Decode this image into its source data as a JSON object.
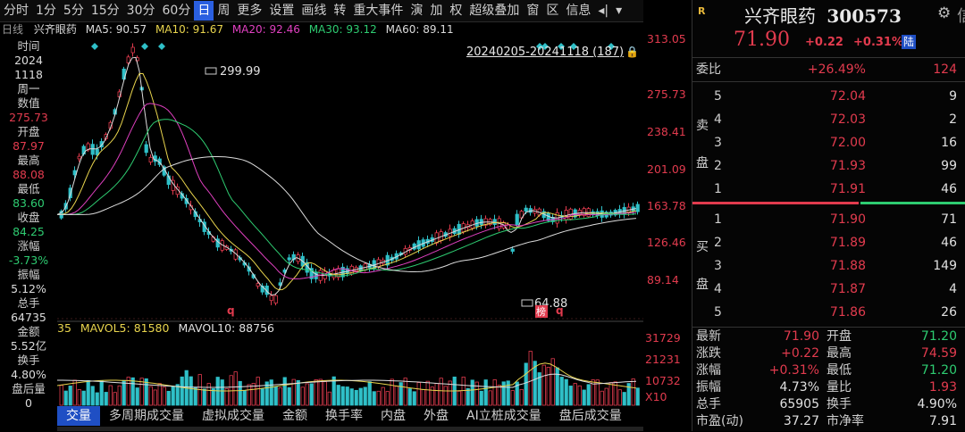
{
  "toolbar": {
    "items": [
      "分时",
      "1分",
      "5分",
      "15分",
      "30分",
      "60分",
      "日",
      "周",
      "更多",
      "设置",
      "画线",
      "转",
      "重大事件",
      "演",
      "加",
      "权",
      "超级叠加",
      "窗",
      "区",
      "信息",
      "◂|",
      "▾"
    ],
    "active_index": 6
  },
  "infobar": {
    "period": "日线",
    "stock": "兴齐眼药",
    "ma5": "MA5: 90.57",
    "ma10": "MA10: 91.67",
    "ma20": "MA20: 92.46",
    "ma30": "MA30: 93.12",
    "ma60": "MA60: 89.11",
    "ma5_color": "#dcdcdc",
    "ma10_color": "#e8d44d",
    "ma20_color": "#e040c0",
    "ma30_color": "#2ecc71",
    "ma60_color": "#dcdcdc"
  },
  "range_label": "20240205-20241118 (187)",
  "left_panel": {
    "time_label": "时间",
    "year": "2024",
    "date": "1118",
    "weekday": "周一",
    "value_label": "数值",
    "value": "275.73",
    "open_label": "开盘",
    "open": "87.97",
    "high_label": "最高",
    "high": "88.08",
    "low_label": "最低",
    "low": "83.60",
    "close_label": "收盘",
    "close": "84.25",
    "change_label": "涨幅",
    "change": "-3.73%",
    "amplitude_label": "振幅",
    "amplitude": "5.12%",
    "volume_label": "总手",
    "volume": "64735",
    "amount_label": "金额",
    "amount": "5.52亿",
    "turnover_label": "换手",
    "turnover": "4.80%",
    "after_label": "盘后量",
    "after": "0"
  },
  "price_axis": [
    "313.05",
    "275.73",
    "238.41",
    "201.09",
    "163.78",
    "126.46",
    "89.14"
  ],
  "chart_labels": {
    "high_mark": "299.99",
    "low_mark": "64.88",
    "q1": "q",
    "q2": "q",
    "bang": "榜"
  },
  "vol_info": {
    "prefix": "35",
    "mavol5": "MAVOL5: 81580",
    "mavol10": "MAVOL10: 88756"
  },
  "vol_axis": [
    "31729",
    "21231",
    "10732",
    "X10"
  ],
  "bottom_tabs": [
    "交量",
    "多周期成交量",
    "虚拟成交量",
    "金额",
    "换手率",
    "内盘",
    "外盘",
    "AI立桩成交量",
    "盘后成交量"
  ],
  "right": {
    "r_icon": "R",
    "name": "兴齐眼药",
    "code": "300573",
    "price": "71.90",
    "change": "+0.22",
    "change_pct": "+0.31%",
    "tag": "陆",
    "weibi_label": "委比",
    "weibi": "+26.49%",
    "weicha": "124",
    "sell_label": [
      "卖",
      "盘"
    ],
    "buy_label": [
      "买",
      "盘"
    ],
    "sell": [
      {
        "lvl": "5",
        "price": "72.04",
        "vol": "9"
      },
      {
        "lvl": "4",
        "price": "72.03",
        "vol": "2"
      },
      {
        "lvl": "3",
        "price": "72.00",
        "vol": "16"
      },
      {
        "lvl": "2",
        "price": "71.93",
        "vol": "99"
      },
      {
        "lvl": "1",
        "price": "71.91",
        "vol": "46"
      }
    ],
    "buy": [
      {
        "lvl": "1",
        "price": "71.90",
        "vol": "71"
      },
      {
        "lvl": "2",
        "price": "71.89",
        "vol": "46"
      },
      {
        "lvl": "3",
        "price": "71.88",
        "vol": "149"
      },
      {
        "lvl": "4",
        "price": "71.87",
        "vol": "4"
      },
      {
        "lvl": "5",
        "price": "71.86",
        "vol": "26"
      }
    ],
    "stats": [
      {
        "l1": "最新",
        "v1": "71.90",
        "c1": "red",
        "l2": "开盘",
        "v2": "71.20",
        "c2": "green"
      },
      {
        "l1": "涨跌",
        "v1": "+0.22",
        "c1": "red",
        "l2": "最高",
        "v2": "74.59",
        "c2": "red"
      },
      {
        "l1": "涨幅",
        "v1": "+0.31%",
        "c1": "red",
        "l2": "最低",
        "v2": "71.20",
        "c2": "green"
      },
      {
        "l1": "振幅",
        "v1": "4.73%",
        "c1": "white",
        "l2": "量比",
        "v2": "1.93",
        "c2": "red"
      },
      {
        "l1": "总手",
        "v1": "65905",
        "c1": "white",
        "l2": "换手",
        "v2": "4.90%",
        "c2": "white"
      },
      {
        "l1": "市盈(动)",
        "v1": "37.27",
        "c1": "white",
        "l2": "市净率",
        "v2": "7.91",
        "c2": "white"
      }
    ]
  },
  "colors": {
    "up": "#e23b4e",
    "down": "#2fc0c8",
    "ma5": "#dcdcdc",
    "ma10": "#e8d44d",
    "ma20": "#e040c0",
    "ma30": "#2ecc71",
    "ma60": "#dcdcdc",
    "accent": "#2a5fe0"
  }
}
